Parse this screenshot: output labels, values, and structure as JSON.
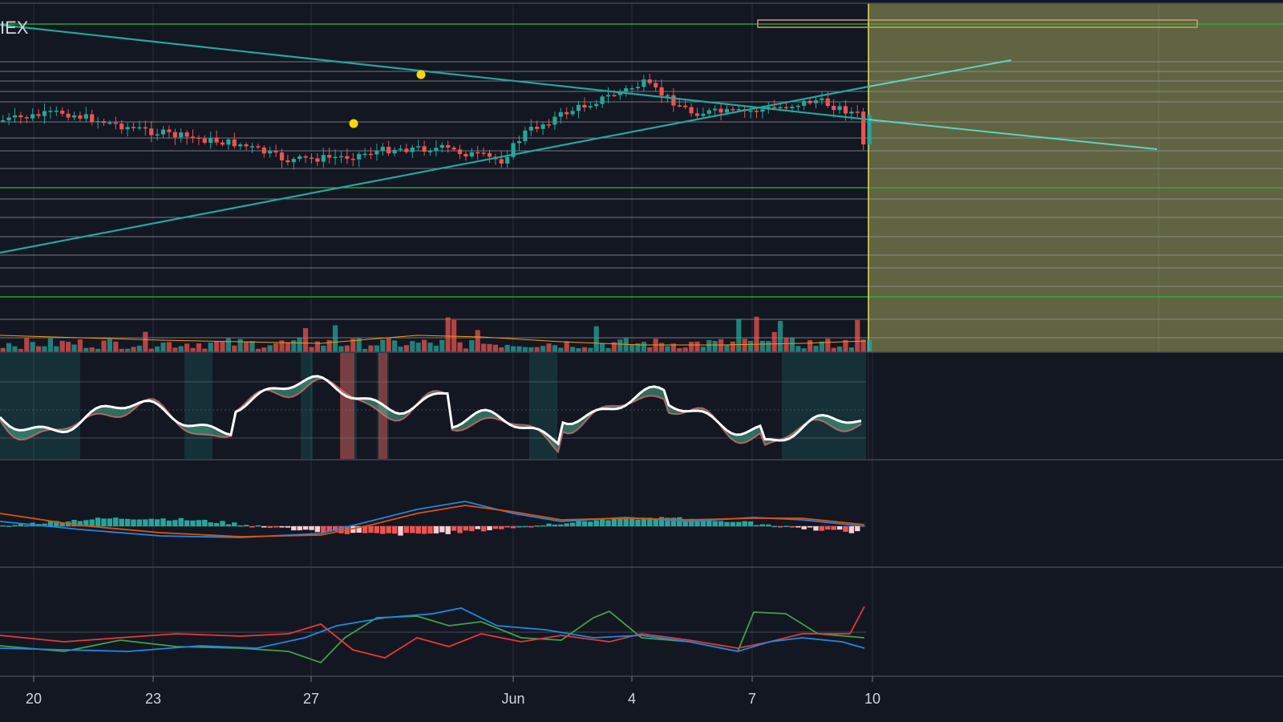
{
  "header": {
    "exchange_label": "IEX"
  },
  "colors": {
    "background": "#131722",
    "grid": "#2a2e39",
    "hline": "#9598a1",
    "green_level": "#2fb82f",
    "trendline": "#26a69a",
    "projection": "#5fd3c0",
    "up_candle": "#26a69a",
    "down_candle": "#ef5350",
    "shade": "#676b45",
    "shade_border": "#e3e35a",
    "marker": "#ffd600",
    "wave_line": "#ffffff",
    "wave_line_up": "#00e5ff",
    "stoch_k": "#1e88e5",
    "stoch_d": "#e65100",
    "dmi_plus": "#43a047",
    "dmi_minus": "#e53935",
    "adx": "#1e88e5"
  },
  "chart_data": {
    "type": "candlestick",
    "x_axis": {
      "tick_labels": [
        "20",
        "23",
        "27",
        "Jun",
        "4",
        "7",
        "10"
      ]
    },
    "markers": [
      {
        "shape": "dot",
        "at_label": "27",
        "offset_bars": 8
      },
      {
        "shape": "dot",
        "at_label": "27",
        "offset_bars": 22
      }
    ],
    "panes": [
      "price",
      "volume",
      "wave-oscillator",
      "macd",
      "dmi"
    ],
    "notes": [
      "projection zone shaded to the right of 10",
      "horizontal level lines across price pane"
    ]
  }
}
